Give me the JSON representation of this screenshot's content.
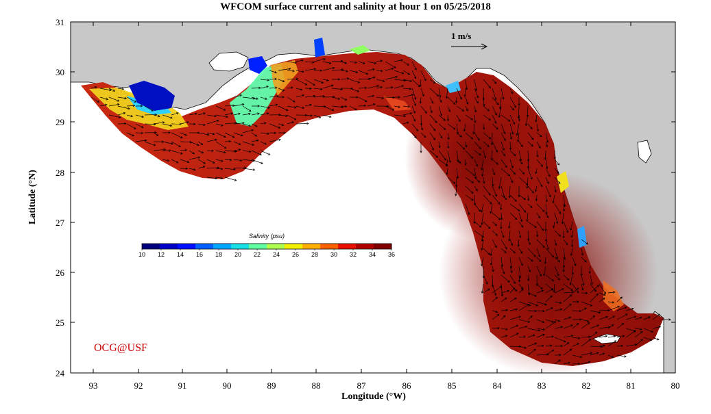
{
  "title": "WFCOM surface current and salinity at hour 1 on 05/25/2018",
  "xlabel": "Longitude (°W)",
  "ylabel": "Latitude (°N)",
  "x_ticks": [
    "93",
    "92",
    "91",
    "90",
    "89",
    "88",
    "87",
    "86",
    "85",
    "84",
    "83",
    "82",
    "81",
    "80"
  ],
  "y_ticks": [
    "31",
    "30",
    "29",
    "28",
    "27",
    "26",
    "25",
    "24"
  ],
  "colorbar": {
    "title": "Salinity (psu)",
    "ticks": [
      "10",
      "12",
      "14",
      "16",
      "18",
      "20",
      "22",
      "24",
      "26",
      "28",
      "30",
      "32",
      "34",
      "36"
    ],
    "colors": [
      "#00007f",
      "#0000c8",
      "#0010ff",
      "#0060ff",
      "#00a8ff",
      "#18e0e8",
      "#60ffa0",
      "#b0ff50",
      "#f0f000",
      "#ffb000",
      "#ff6000",
      "#e81000",
      "#b00000",
      "#800000"
    ]
  },
  "scale_vector_label": "1 m/s",
  "credit": "OCG@USF",
  "colors": {
    "land": "#c8c8c8",
    "ocean": "#b81a10",
    "deep_ocean": "#8a0d08",
    "vector": "#000000",
    "credit": "#cc0000"
  }
}
